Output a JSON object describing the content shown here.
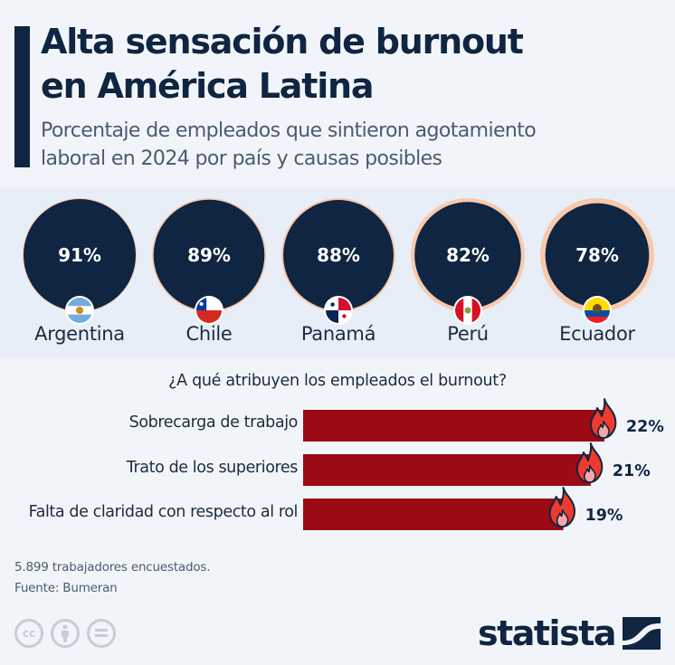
{
  "header": {
    "title_line1": "Alta sensación de burnout",
    "title_line2": "en América Latina",
    "subtitle_line1": "Porcentaje de empleados que sintieron agotamiento",
    "subtitle_line2": "laboral en 2024 por país y causas posibles"
  },
  "colors": {
    "navy": "#0f2541",
    "peach": "#f8c9ad",
    "bar_red": "#9c0a14",
    "flame_red": "#ee3b2e",
    "flame_pink": "#f4a9a8",
    "panel_bg": "#e8eef7",
    "page_bg": "#f1f5f9"
  },
  "chart_data": [
    {
      "type": "bubble",
      "title": "Porcentaje de empleados que sintieron agotamiento laboral en 2024 por país",
      "categories": [
        "Argentina",
        "Chile",
        "Panamá",
        "Perú",
        "Ecuador"
      ],
      "values": [
        91,
        89,
        88,
        82,
        78
      ],
      "labels": [
        "91%",
        "89%",
        "88%",
        "82%",
        "78%"
      ],
      "flags": [
        "flag-argentina",
        "flag-chile",
        "flag-panama",
        "flag-peru",
        "flag-ecuador"
      ],
      "unit": "%"
    },
    {
      "type": "bar",
      "orientation": "horizontal",
      "title": "¿A qué atribuyen los empleados el burnout?",
      "categories": [
        "Sobrecarga de trabajo",
        "Trato de los superiores",
        "Falta de claridad con respecto al rol"
      ],
      "values": [
        22,
        21,
        19
      ],
      "labels": [
        "22%",
        "21%",
        "19%"
      ],
      "marker_icon": "flame-icon",
      "xlim": [
        0,
        22
      ],
      "unit": "%"
    }
  ],
  "footer": {
    "note": "5.899 trabajadores encuestados.",
    "source": "Fuente: Bumeran",
    "license_icons": [
      "cc-icon",
      "attribution-icon",
      "no-derivatives-icon"
    ],
    "cc_text": "cc",
    "brand": "statista"
  }
}
